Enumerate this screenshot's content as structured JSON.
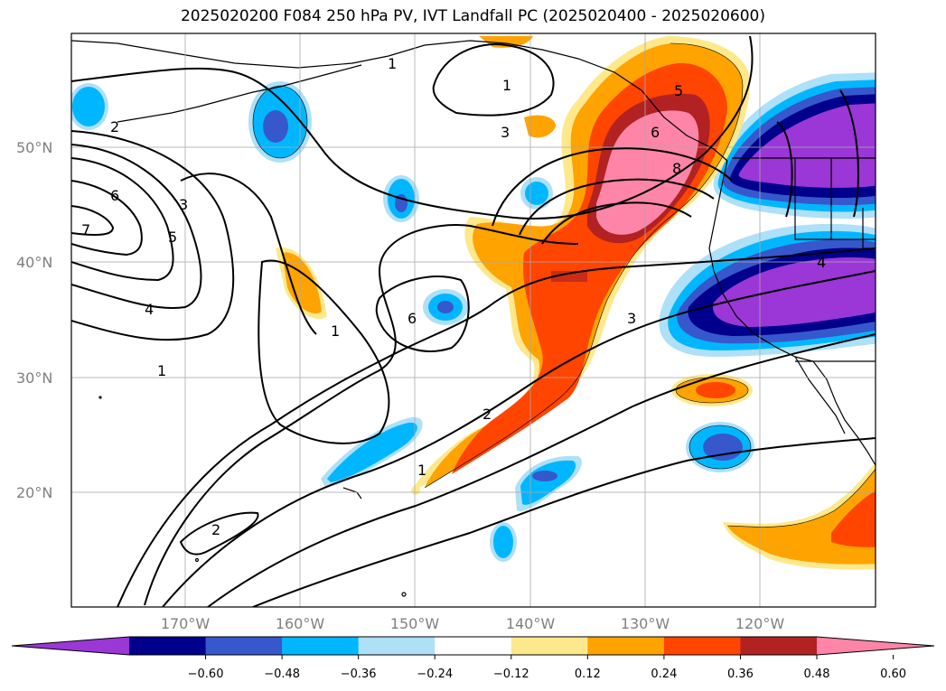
{
  "title": "2025020200 F084 250 hPa PV, IVT Landfall PC (2025020400 - 2025020600)",
  "map": {
    "lon_range": [
      -180,
      -110
    ],
    "lat_range": [
      10,
      60
    ],
    "lat_ticks": [
      "20°N",
      "30°N",
      "40°N",
      "50°N"
    ],
    "lon_ticks": [
      "170°W",
      "160°W",
      "150°W",
      "140°W",
      "130°W",
      "120°W"
    ],
    "grid": true,
    "contour_labels": [
      "2",
      "1",
      "6",
      "7",
      "3",
      "5",
      "4",
      "1",
      "2",
      "1",
      "6",
      "3",
      "5",
      "6",
      "8",
      "1",
      "2",
      "3",
      "4",
      "1"
    ]
  },
  "colorbar": {
    "levels": [
      "−0.60",
      "−0.48",
      "−0.36",
      "−0.24",
      "−0.12",
      "0.12",
      "0.24",
      "0.36",
      "0.48",
      "0.60"
    ],
    "colors": [
      "#9a37d6",
      "#00008c",
      "#3658cc",
      "#00b7ff",
      "#aee0f8",
      "#ffffff",
      "#fde98c",
      "#ffa300",
      "#ff4500",
      "#b22222",
      "#ff85a8"
    ],
    "extend": "both"
  }
}
